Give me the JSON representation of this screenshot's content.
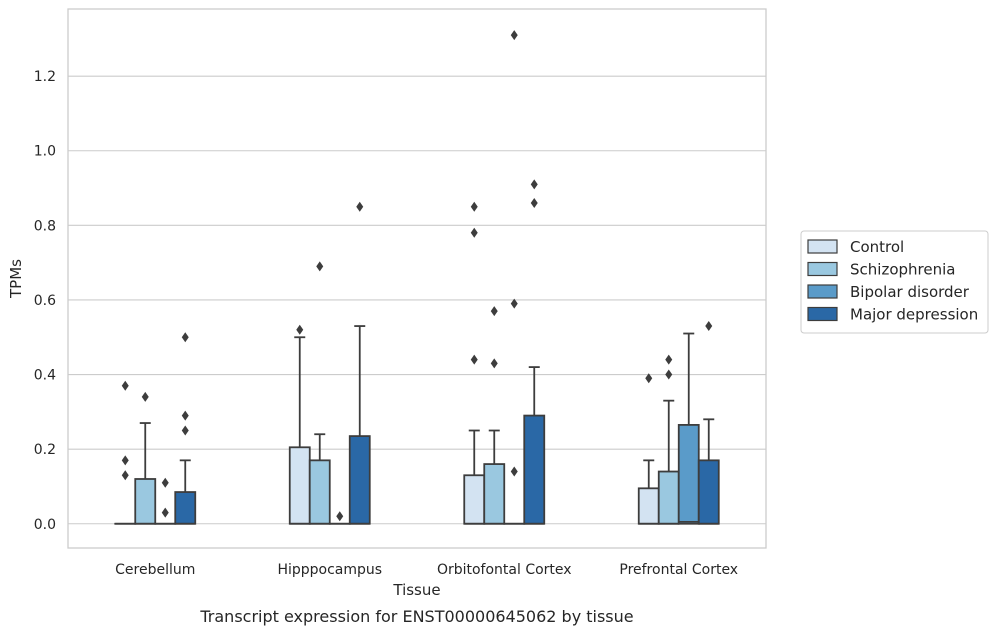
{
  "caption": "Transcript expression for ENST00000645062 by tissue",
  "chart_data": {
    "type": "box",
    "xlabel": "Tissue",
    "ylabel": "TPMs",
    "ylim": [
      -0.065,
      1.38
    ],
    "yticks": [
      "0.0",
      "0.2",
      "0.4",
      "0.6",
      "0.8",
      "1.0",
      "1.2"
    ],
    "grid": true,
    "legend_position": "right",
    "categories": [
      "Cerebellum",
      "Hipppocampus",
      "Orbitofontal Cortex",
      "Prefrontal Cortex"
    ],
    "series": [
      {
        "name": "Control",
        "color": "#d3e3f2",
        "boxes": [
          {
            "q1": 0,
            "median": 0,
            "q3": 0,
            "whisker_low": 0,
            "whisker_high": 0,
            "outliers": [
              0.37,
              0.17,
              0.13
            ]
          },
          {
            "q1": 0,
            "median": 0,
            "q3": 0.205,
            "whisker_low": 0,
            "whisker_high": 0.5,
            "outliers": [
              0.52
            ]
          },
          {
            "q1": 0,
            "median": 0,
            "q3": 0.13,
            "whisker_low": 0,
            "whisker_high": 0.25,
            "outliers": [
              0.85,
              0.78,
              0.44
            ]
          },
          {
            "q1": 0,
            "median": 0,
            "q3": 0.095,
            "whisker_low": 0,
            "whisker_high": 0.17,
            "outliers": [
              0.39
            ]
          }
        ]
      },
      {
        "name": "Schizophrenia",
        "color": "#9ac8e0",
        "boxes": [
          {
            "q1": 0,
            "median": 0,
            "q3": 0.12,
            "whisker_low": 0,
            "whisker_high": 0.27,
            "outliers": [
              0.34
            ]
          },
          {
            "q1": 0,
            "median": 0,
            "q3": 0.17,
            "whisker_low": 0,
            "whisker_high": 0.24,
            "outliers": [
              0.69
            ]
          },
          {
            "q1": 0,
            "median": 0,
            "q3": 0.16,
            "whisker_low": 0,
            "whisker_high": 0.25,
            "outliers": [
              0.57,
              0.43
            ]
          },
          {
            "q1": 0,
            "median": 0,
            "q3": 0.14,
            "whisker_low": 0,
            "whisker_high": 0.33,
            "outliers": [
              0.44,
              0.4
            ]
          }
        ]
      },
      {
        "name": "Bipolar disorder",
        "color": "#5a9bc9",
        "boxes": [
          {
            "q1": 0,
            "median": 0,
            "q3": 0,
            "whisker_low": 0,
            "whisker_high": 0,
            "outliers": [
              0.11,
              0.03
            ]
          },
          {
            "q1": 0,
            "median": 0,
            "q3": 0,
            "whisker_low": 0,
            "whisker_high": 0,
            "outliers": [
              0.02
            ]
          },
          {
            "q1": 0,
            "median": 0,
            "q3": 0,
            "whisker_low": 0,
            "whisker_high": 0,
            "outliers": [
              1.31,
              0.59,
              0.14
            ]
          },
          {
            "q1": 0,
            "median": 0.005,
            "q3": 0.265,
            "whisker_low": 0,
            "whisker_high": 0.51,
            "outliers": []
          }
        ]
      },
      {
        "name": "Major depression",
        "color": "#2a68a6",
        "boxes": [
          {
            "q1": 0,
            "median": 0,
            "q3": 0.085,
            "whisker_low": 0,
            "whisker_high": 0.17,
            "outliers": [
              0.5,
              0.29,
              0.25
            ]
          },
          {
            "q1": 0,
            "median": 0,
            "q3": 0.235,
            "whisker_low": 0,
            "whisker_high": 0.53,
            "outliers": [
              0.85
            ]
          },
          {
            "q1": 0,
            "median": 0,
            "q3": 0.29,
            "whisker_low": 0,
            "whisker_high": 0.42,
            "outliers": [
              0.91,
              0.86
            ]
          },
          {
            "q1": 0,
            "median": 0,
            "q3": 0.17,
            "whisker_low": 0,
            "whisker_high": 0.28,
            "outliers": [
              0.53
            ]
          }
        ]
      }
    ]
  }
}
